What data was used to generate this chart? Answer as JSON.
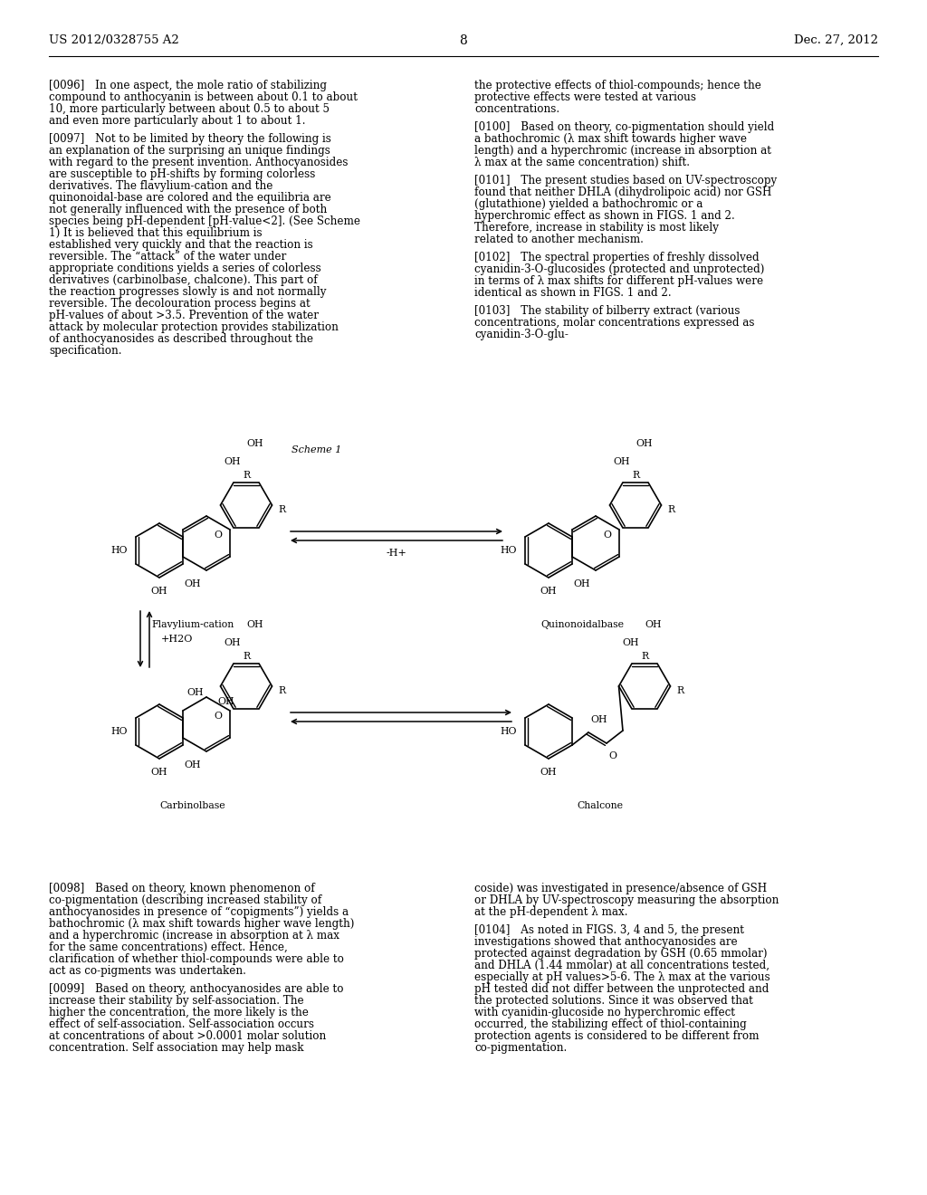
{
  "page_number": "8",
  "patent_number": "US 2012/0328755 A2",
  "patent_date": "Dec. 27, 2012",
  "background_color": "#ffffff",
  "text_color": "#000000",
  "body_fontsize": 8.6,
  "header_fontsize": 9.5,
  "scheme_label": "Scheme 1",
  "mol_labels": [
    "Flavylium-cation",
    "Quinonoidalbase",
    "Carbinolbase",
    "Chalcone"
  ],
  "arrow_labels": [
    "-H+",
    "+H2O"
  ],
  "paragraphs_left_top": [
    "[0096] In one aspect, the mole ratio of stabilizing compound to anthocyanin is between about 0.1 to about 10, more particularly between about 0.5 to about 5 and even more particularly about 1 to about 1.",
    "[0097] Not to be limited by theory the following is an explanation of the surprising an unique findings with regard to the present invention. Anthocyanosides are susceptible to pH-shifts by forming colorless derivatives. The flavylium-cation and the quinonoidal-base are colored and the equilibria are not generally influenced with the presence of both species being pH-dependent [pH-value<2]. (See Scheme 1) It is believed that this equilibrium is established very quickly and that the reaction is reversible. The “attack” of the water under appropriate conditions yields a series of colorless derivatives (carbinolbase, chalcone). This part of the reaction progresses slowly is and not normally reversible. The decolouration process begins at pH-values of about >3.5. Prevention of the water attack by molecular protection provides stabilization of anthocyanosides as described throughout the specification."
  ],
  "paragraphs_right_top": [
    "the protective effects of thiol-compounds; hence the protective effects were tested at various concentrations.",
    "[0100] Based on theory, co-pigmentation should yield a bathochromic (λ max shift towards higher wave length) and a hyperchromic (increase in absorption at λ max at the same concentration) shift.",
    "[0101] The present studies based on UV-spectroscopy found that neither DHLA (dihydrolipoic acid) nor GSH (glutathione) yielded a bathochromic or a hyperchromic effect as shown in FIGS. 1 and 2. Therefore, increase in stability is most likely related to another mechanism.",
    "[0102] The spectral properties of freshly dissolved cyanidin-3-O-glucosides (protected and unprotected) in terms of λ max shifts for different pH-values were identical as shown in FIGS. 1 and 2.",
    "[0103] The stability of bilberry extract (various concentrations, molar concentrations expressed as cyanidin-3-O-glu-"
  ],
  "paragraphs_left_bottom": [
    "[0098] Based on theory, known phenomenon of co-pigmentation (describing increased stability of anthocyanosides in presence of “copigments”) yields a bathochromic (λ max shift towards higher wave length) and a hyperchromic (increase in absorption at λ max for the same concentrations) effect. Hence, clarification of whether thiol-compounds were able to act as co-pigments was undertaken.",
    "[0099] Based on theory, anthocyanosides are able to increase their stability by self-association. The higher the concentration, the more likely is the effect of self-association. Self-association occurs at concentrations of about >0.0001 molar solution concentration. Self association may help mask"
  ],
  "paragraphs_right_bottom": [
    "coside) was investigated in presence/absence of GSH or DHLA by UV-spectroscopy measuring the absorption at the pH-dependent λ max.",
    "[0104] As noted in FIGS. 3, 4 and 5, the present investigations showed that anthocyanosides are protected against degradation by GSH (0.65 mmolar) and DHLA (1.44 mmolar) at all concentrations tested, especially at pH values>5-6. The λ max at the various pH tested did not differ between the unprotected and the protected solutions. Since it was observed that with cyanidin-glucoside no hyperchromic effect occurred, the stabilizing effect of thiol-containing protection agents is considered to be different from co-pigmentation."
  ]
}
